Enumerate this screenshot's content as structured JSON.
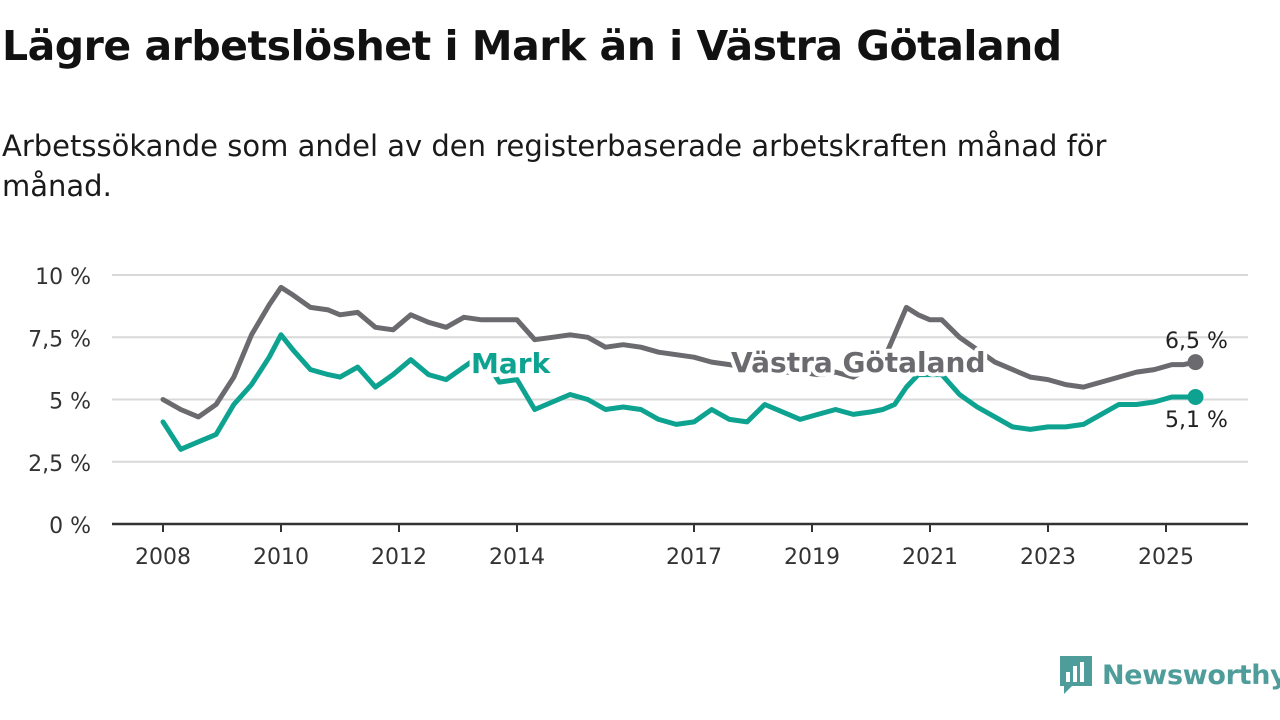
{
  "title": "Lägre arbetslöshet i Mark än i Västra Götaland",
  "subtitle": "Arbetssökande som andel av den registerbaserade arbetskraften månad för månad.",
  "brand": "Newsworthy",
  "colors": {
    "mark": "#0da390",
    "vastra_gotaland": "#6b6a6e",
    "grid": "#d9d9d9",
    "axis": "#333333",
    "brand": "#4e9d9b"
  },
  "chart_data": {
    "type": "line",
    "ylim": [
      0,
      10
    ],
    "y_ticks": [
      {
        "value": 0,
        "label": "0 %"
      },
      {
        "value": 2.5,
        "label": "2,5 %"
      },
      {
        "value": 5,
        "label": "5 %"
      },
      {
        "value": 7.5,
        "label": "7,5 %"
      },
      {
        "value": 10,
        "label": "10 %"
      }
    ],
    "x_ticks": [
      {
        "value": 2008,
        "label": "2008"
      },
      {
        "value": 2010,
        "label": "2010"
      },
      {
        "value": 2012,
        "label": "2012"
      },
      {
        "value": 2014,
        "label": "2014"
      },
      {
        "value": 2017,
        "label": "2017"
      },
      {
        "value": 2019,
        "label": "2019"
      },
      {
        "value": 2021,
        "label": "2021"
      },
      {
        "value": 2023,
        "label": "2023"
      },
      {
        "value": 2025,
        "label": "2025"
      }
    ],
    "grid": true,
    "series": [
      {
        "name": "Västra Götaland",
        "end_label": "6,5 %",
        "x": [
          2008.0,
          2008.3,
          2008.6,
          2008.9,
          2009.2,
          2009.5,
          2009.8,
          2010.0,
          2010.2,
          2010.5,
          2010.8,
          2011.0,
          2011.3,
          2011.6,
          2011.9,
          2012.2,
          2012.5,
          2012.8,
          2013.1,
          2013.4,
          2013.7,
          2014.0,
          2014.3,
          2014.6,
          2014.9,
          2015.2,
          2015.5,
          2015.8,
          2016.1,
          2016.4,
          2016.7,
          2017.0,
          2017.3,
          2017.6,
          2017.9,
          2018.2,
          2018.5,
          2018.8,
          2019.1,
          2019.4,
          2019.7,
          2020.0,
          2020.2,
          2020.4,
          2020.6,
          2020.8,
          2021.0,
          2021.2,
          2021.5,
          2021.8,
          2022.1,
          2022.4,
          2022.7,
          2023.0,
          2023.3,
          2023.6,
          2023.9,
          2024.2,
          2024.5,
          2024.8,
          2025.1,
          2025.3,
          2025.5
        ],
        "values": [
          5.0,
          4.6,
          4.3,
          4.8,
          5.9,
          7.6,
          8.8,
          9.5,
          9.2,
          8.7,
          8.6,
          8.4,
          8.5,
          7.9,
          7.8,
          8.4,
          8.1,
          7.9,
          8.3,
          8.2,
          8.2,
          8.2,
          7.4,
          7.5,
          7.6,
          7.5,
          7.1,
          7.2,
          7.1,
          6.9,
          6.8,
          6.7,
          6.5,
          6.4,
          6.3,
          6.2,
          6.1,
          6.1,
          6.0,
          6.1,
          5.9,
          6.3,
          6.5,
          7.6,
          8.7,
          8.4,
          8.2,
          8.2,
          7.5,
          7.0,
          6.5,
          6.2,
          5.9,
          5.8,
          5.6,
          5.5,
          5.7,
          5.9,
          6.1,
          6.2,
          6.4,
          6.4,
          6.5
        ]
      },
      {
        "name": "Mark",
        "end_label": "5,1 %",
        "x": [
          2008.0,
          2008.3,
          2008.6,
          2008.9,
          2009.2,
          2009.5,
          2009.8,
          2010.0,
          2010.2,
          2010.5,
          2010.8,
          2011.0,
          2011.3,
          2011.6,
          2011.9,
          2012.2,
          2012.5,
          2012.8,
          2013.1,
          2013.4,
          2013.7,
          2014.0,
          2014.3,
          2014.6,
          2014.9,
          2015.2,
          2015.5,
          2015.8,
          2016.1,
          2016.4,
          2016.7,
          2017.0,
          2017.3,
          2017.6,
          2017.9,
          2018.2,
          2018.5,
          2018.8,
          2019.1,
          2019.4,
          2019.7,
          2020.0,
          2020.2,
          2020.4,
          2020.6,
          2020.8,
          2021.0,
          2021.2,
          2021.5,
          2021.8,
          2022.1,
          2022.4,
          2022.7,
          2023.0,
          2023.3,
          2023.6,
          2023.9,
          2024.2,
          2024.5,
          2024.8,
          2025.1,
          2025.3,
          2025.5
        ],
        "values": [
          4.1,
          3.0,
          3.3,
          3.6,
          4.8,
          5.6,
          6.7,
          7.6,
          7.0,
          6.2,
          6.0,
          5.9,
          6.3,
          5.5,
          6.0,
          6.6,
          6.0,
          5.8,
          6.3,
          6.8,
          5.7,
          5.8,
          4.6,
          4.9,
          5.2,
          5.0,
          4.6,
          4.7,
          4.6,
          4.2,
          4.0,
          4.1,
          4.6,
          4.2,
          4.1,
          4.8,
          4.5,
          4.2,
          4.4,
          4.6,
          4.4,
          4.5,
          4.6,
          4.8,
          5.5,
          6.0,
          6.0,
          6.0,
          5.2,
          4.7,
          4.3,
          3.9,
          3.8,
          3.9,
          3.9,
          4.0,
          4.4,
          4.8,
          4.8,
          4.9,
          5.1,
          5.1,
          5.1
        ]
      }
    ],
    "annotations": [
      {
        "text": "Mark",
        "series": "Mark"
      },
      {
        "text": "Västra Götaland",
        "series": "Västra Götaland"
      }
    ]
  }
}
